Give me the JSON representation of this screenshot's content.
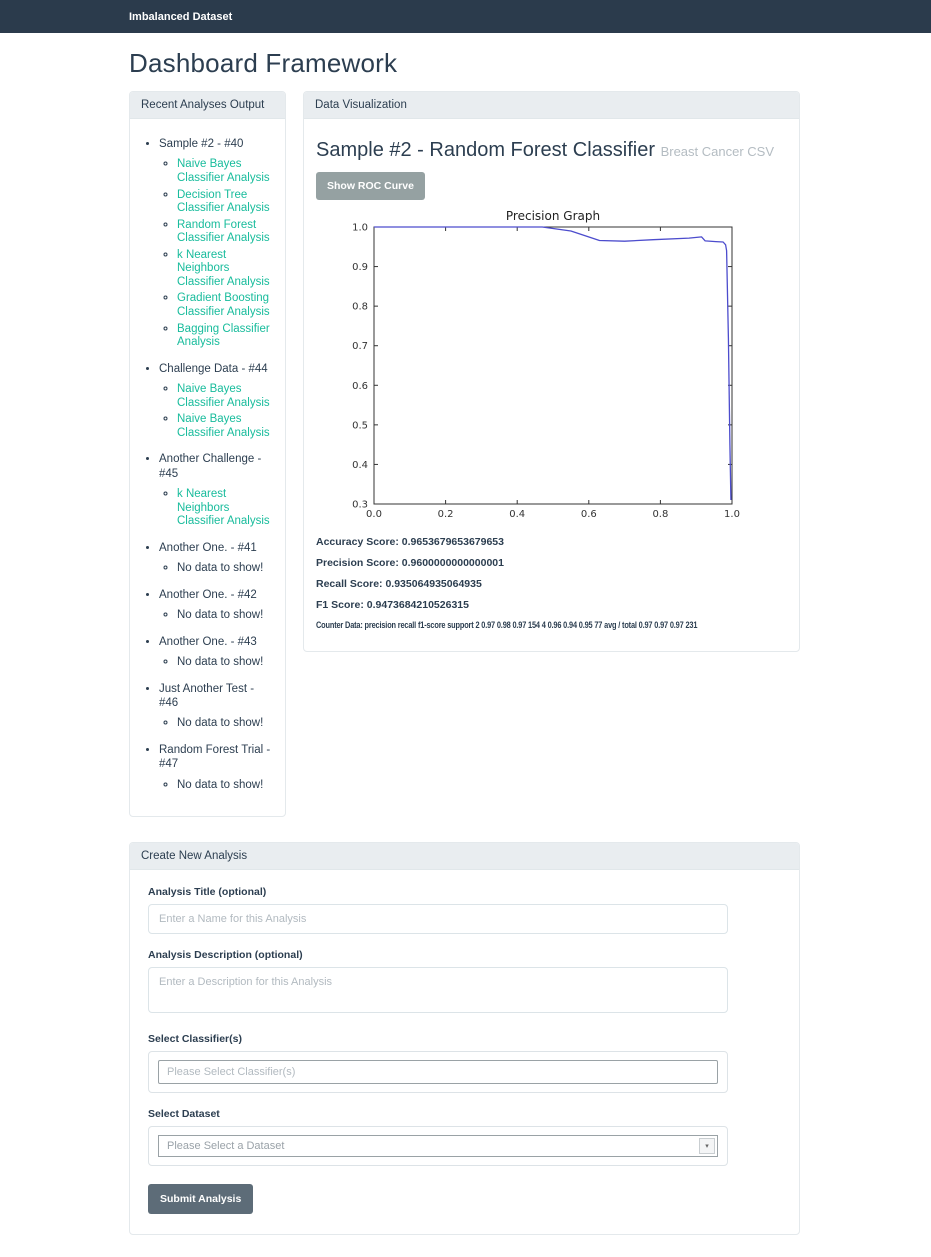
{
  "navbar": {
    "brand": "Imbalanced Dataset"
  },
  "page": {
    "title": "Dashboard Framework"
  },
  "colors": {
    "navbar_bg": "#2b3b4c",
    "text_primary": "#2c3e50",
    "link_accent": "#18bc9c",
    "panel_heading_bg": "#e9edf0",
    "roc_button_bg": "#95a1a2",
    "submit_button_bg": "#5d6c78",
    "chart_line": "#4c4ccd"
  },
  "recent_panel": {
    "header": "Recent Analyses Output",
    "analyses": [
      {
        "name": "Sample #2 - #40",
        "links": [
          "Naive Bayes Classifier Analysis",
          "Decision Tree Classifier Analysis",
          "Random Forest Classifier Analysis",
          "k Nearest Neighbors Classifier Analysis",
          "Gradient Boosting Classifier Analysis",
          "Bagging Classifier Analysis"
        ]
      },
      {
        "name": "Challenge Data - #44",
        "links": [
          "Naive Bayes Classifier Analysis",
          "Naive Bayes Classifier Analysis"
        ]
      },
      {
        "name": "Another Challenge - #45",
        "links": [
          "k Nearest Neighbors Classifier Analysis"
        ]
      },
      {
        "name": "Another One. - #41",
        "links": [],
        "empty": "No data to show!"
      },
      {
        "name": "Another One. - #42",
        "links": [],
        "empty": "No data to show!"
      },
      {
        "name": "Another One. - #43",
        "links": [],
        "empty": "No data to show!"
      },
      {
        "name": "Just Another Test - #46",
        "links": [],
        "empty": "No data to show!"
      },
      {
        "name": "Random Forest Trial - #47",
        "links": [],
        "empty": "No data to show!"
      }
    ]
  },
  "viz_panel": {
    "header": "Data Visualization",
    "title": "Sample #2 - Random Forest Classifier",
    "subtitle": "Breast Cancer CSV",
    "roc_button": "Show ROC Curve",
    "metrics": [
      {
        "label": "Accuracy Score:",
        "value": "0.9653679653679653"
      },
      {
        "label": "Precision Score:",
        "value": "0.9600000000000001"
      },
      {
        "label": "Recall Score:",
        "value": "0.935064935064935"
      },
      {
        "label": "F1 Score:",
        "value": "0.9473684210526315"
      },
      {
        "label": "Counter Data:",
        "value": "precision recall f1-score support 2 0.97 0.98 0.97 154 4 0.96 0.94 0.95 77 avg / total 0.97 0.97 0.97 231"
      }
    ]
  },
  "chart_data": {
    "type": "line",
    "title": "Precision Graph",
    "xlabel": "",
    "ylabel": "",
    "xlim": [
      0.0,
      1.0
    ],
    "ylim": [
      0.3,
      1.0
    ],
    "x_ticks": [
      0.0,
      0.2,
      0.4,
      0.6,
      0.8,
      1.0
    ],
    "y_ticks": [
      0.3,
      0.4,
      0.5,
      0.6,
      0.7,
      0.8,
      0.9,
      1.0
    ],
    "grid": false,
    "legend": "none",
    "line_color": "#4c4ccd",
    "series": [
      {
        "name": "precision",
        "points": [
          [
            0.0,
            1.0
          ],
          [
            0.47,
            1.0
          ],
          [
            0.55,
            0.99
          ],
          [
            0.63,
            0.966
          ],
          [
            0.7,
            0.964
          ],
          [
            0.78,
            0.968
          ],
          [
            0.88,
            0.972
          ],
          [
            0.915,
            0.975
          ],
          [
            0.925,
            0.965
          ],
          [
            0.955,
            0.963
          ],
          [
            0.975,
            0.962
          ],
          [
            0.982,
            0.955
          ],
          [
            0.985,
            0.94
          ],
          [
            0.99,
            0.72
          ],
          [
            0.994,
            0.45
          ],
          [
            0.997,
            0.31
          ]
        ]
      }
    ]
  },
  "form_panel": {
    "header": "Create New Analysis",
    "title_label": "Analysis Title (optional)",
    "title_placeholder": "Enter a Name for this Analysis",
    "description_label": "Analysis Description (optional)",
    "description_placeholder": "Enter a Description for this Analysis",
    "classifiers_label": "Select Classifier(s)",
    "classifiers_placeholder": "Please Select Classifier(s)",
    "dataset_label": "Select Dataset",
    "dataset_placeholder": "Please Select a Dataset",
    "submit_label": "Submit Analysis"
  }
}
